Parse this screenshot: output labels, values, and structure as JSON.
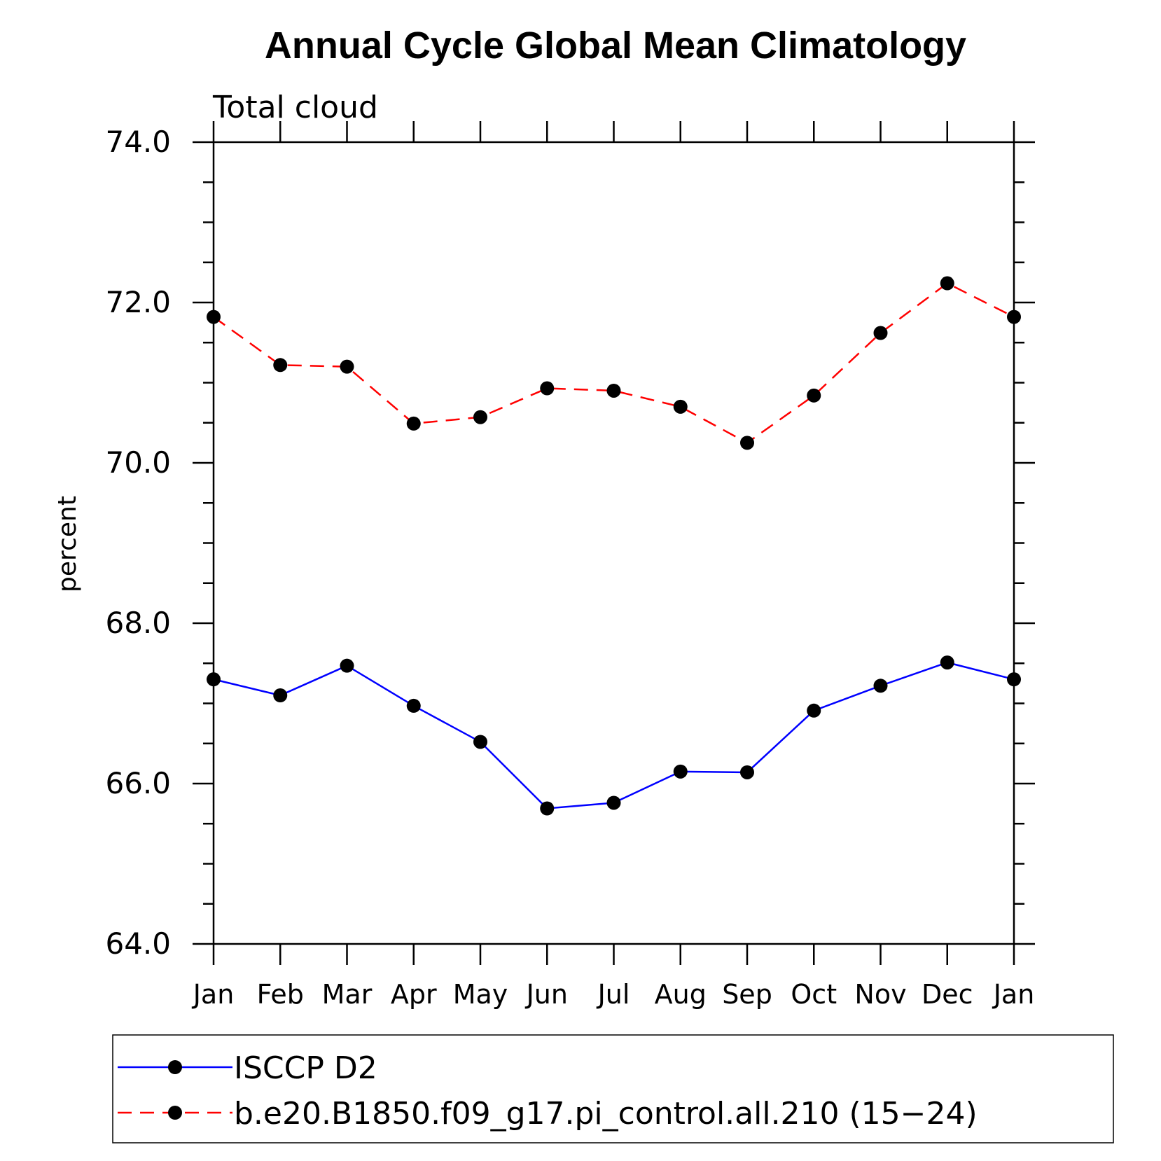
{
  "chart_data": {
    "type": "line",
    "title": "Annual Cycle Global Mean Climatology",
    "subtitle": "Total cloud",
    "xlabel": "",
    "ylabel": "percent",
    "ylim": [
      64.0,
      74.0
    ],
    "yticks": [
      "64.0",
      "66.0",
      "68.0",
      "70.0",
      "72.0",
      "74.0"
    ],
    "categories": [
      "Jan",
      "Feb",
      "Mar",
      "Apr",
      "May",
      "Jun",
      "Jul",
      "Aug",
      "Sep",
      "Oct",
      "Nov",
      "Dec",
      "Jan"
    ],
    "series": [
      {
        "name": "ISCCP D2",
        "color": "#0000ff",
        "dash": "solid",
        "values": [
          67.3,
          67.1,
          67.47,
          66.97,
          66.52,
          65.69,
          65.76,
          66.15,
          66.14,
          66.91,
          67.22,
          67.51,
          67.3
        ]
      },
      {
        "name": "b.e20.B1850.f09_g17.pi_control.all.210 (15−24)",
        "color": "#ff0000",
        "dash": "dashed",
        "values": [
          71.82,
          71.22,
          71.2,
          70.49,
          70.57,
          70.93,
          70.9,
          70.7,
          70.25,
          70.84,
          71.62,
          72.24,
          71.82
        ]
      }
    ],
    "legend_position": "bottom"
  }
}
